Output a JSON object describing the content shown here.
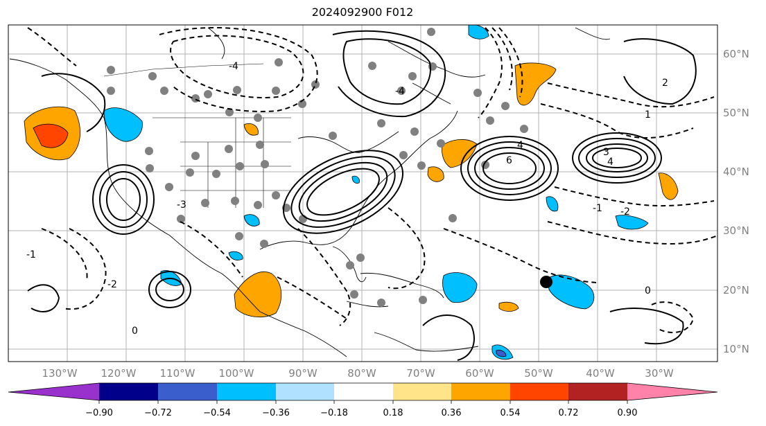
{
  "map": {
    "title": "2024092900 F012",
    "lon_labels": [
      "130°W",
      "120°W",
      "110°W",
      "100°W",
      "90°W",
      "80°W",
      "70°W",
      "60°W",
      "50°W",
      "40°W",
      "30°W"
    ],
    "lat_labels": [
      "60°N",
      "50°N",
      "40°N",
      "30°N",
      "20°N",
      "10°N"
    ],
    "contour_labels": [
      "6",
      "4",
      "3",
      "4",
      "2",
      "1",
      "0",
      "-1",
      "-2",
      "-3",
      "-4",
      "-4",
      "0",
      "-1",
      "-2"
    ],
    "colors": {
      "grid": "#b0b0b0",
      "positive_fill": "#ffa500",
      "positive_core": "#ff4500",
      "negative_fill": "#00bfff",
      "negative_core": "#3a5fcd",
      "station_dot": "#808080",
      "marker": "#000000"
    }
  },
  "colorbar": {
    "tick_labels": [
      "−0.90",
      "−0.72",
      "−0.54",
      "−0.36",
      "−0.18",
      "0.18",
      "0.36",
      "0.54",
      "0.72",
      "0.90"
    ],
    "colors": [
      "#9932cc",
      "#00008b",
      "#3a5fcd",
      "#00bfff",
      "#b0e2ff",
      "#ffffff",
      "#ffe48a",
      "#ffa500",
      "#ff4500",
      "#b22222",
      "#ff82ab"
    ]
  }
}
